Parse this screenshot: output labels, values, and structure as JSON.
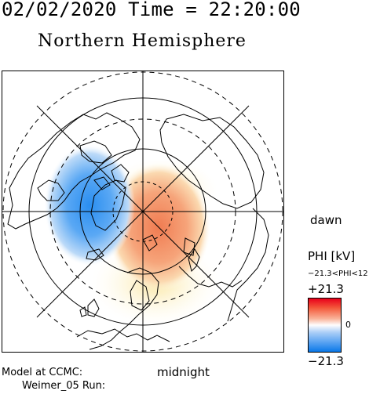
{
  "header": {
    "time_text": "02/02/2020 Time = 22:20:00",
    "title": "Northern Hemisphere"
  },
  "map": {
    "projection": "polar-stereographic",
    "edge_labels": {
      "right": "dawn",
      "bottom": "midnight"
    },
    "colors": {
      "positive": "#e8001a",
      "negative": "#0a78e8",
      "neutral": "#ffffff",
      "coastline": "#000000"
    }
  },
  "colorbar": {
    "quantity_label": "PHI [kV]",
    "range_text": "−21.3<PHI<12",
    "max_label": "+21.3",
    "zero_label": "0",
    "min_label": "−21.3"
  },
  "footer": {
    "model_label": "Model at CCMC:",
    "run_label": "Weimer_05 Run:"
  }
}
